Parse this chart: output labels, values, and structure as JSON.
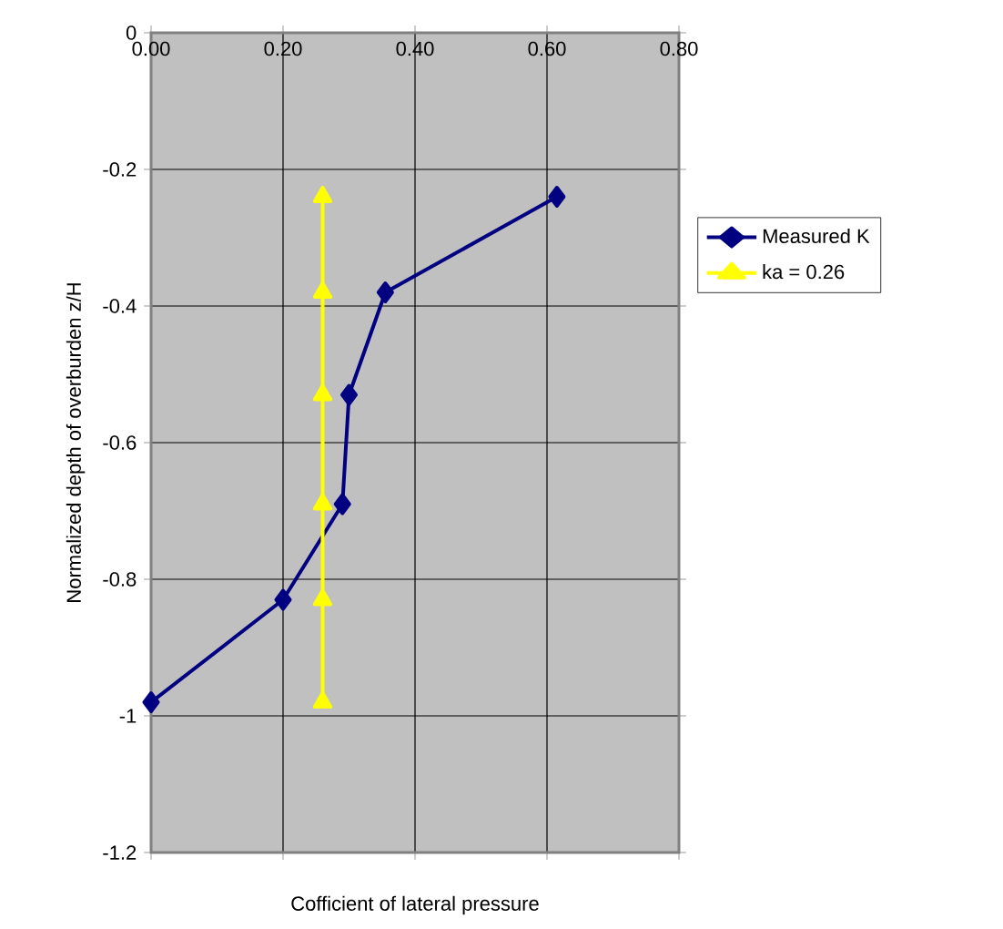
{
  "chart_data": {
    "type": "line",
    "xlabel": "Cofficient of lateral pressure",
    "ylabel": "Normalized depth of overburden z/H",
    "xlim": [
      0,
      0.8
    ],
    "ylim": [
      -1.2,
      0
    ],
    "xticks": [
      {
        "value": 0,
        "label": "0.00"
      },
      {
        "value": 0.2,
        "label": "0.20"
      },
      {
        "value": 0.4,
        "label": "0.40"
      },
      {
        "value": 0.6,
        "label": "0.60"
      },
      {
        "value": 0.8,
        "label": "0.80"
      }
    ],
    "yticks": [
      0,
      -0.2,
      -0.4,
      -0.6,
      -0.8,
      -1,
      -1.2
    ],
    "grid": true,
    "legend": "right",
    "series": [
      {
        "name": "Measured K",
        "color": "#000080",
        "marker": "diamond",
        "x": [
          0.615,
          0.355,
          0.3,
          0.29,
          0.2,
          0.0
        ],
        "values": [
          -0.24,
          -0.38,
          -0.53,
          -0.69,
          -0.83,
          -0.98
        ]
      },
      {
        "name": "ka = 0.26",
        "color": "#ffff00",
        "marker": "triangle",
        "x": [
          0.26,
          0.26,
          0.26,
          0.26,
          0.26,
          0.26
        ],
        "values": [
          -0.24,
          -0.38,
          -0.53,
          -0.69,
          -0.83,
          -0.98
        ]
      }
    ]
  }
}
